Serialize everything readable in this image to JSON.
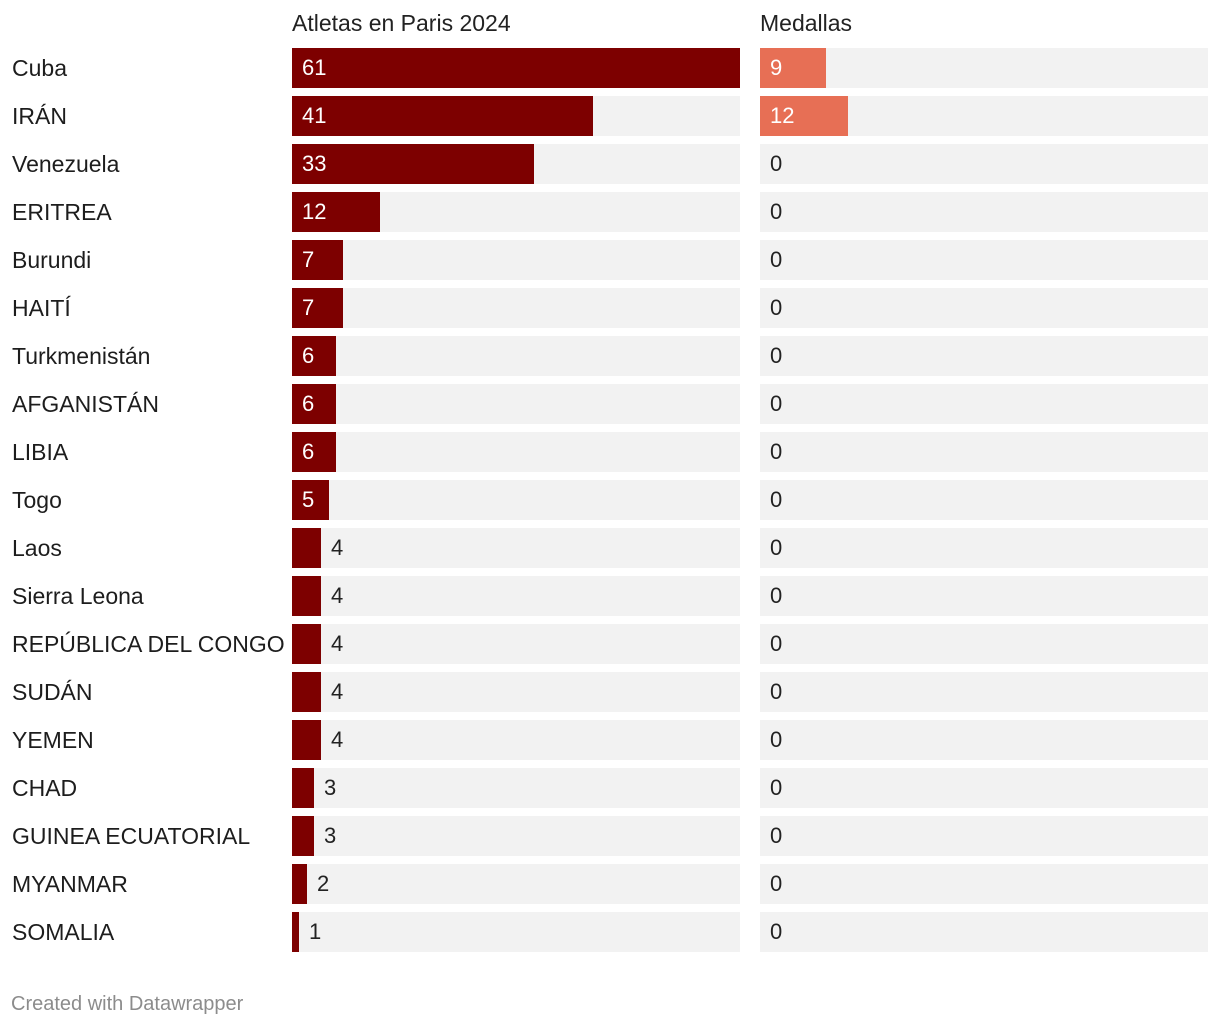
{
  "chart_data": {
    "type": "bar",
    "orientation": "horizontal",
    "series": [
      {
        "name": "Atletas en Paris 2024",
        "max": 61,
        "color": "#7d0000",
        "values": [
          61,
          41,
          33,
          12,
          7,
          7,
          6,
          6,
          6,
          5,
          4,
          4,
          4,
          4,
          4,
          3,
          3,
          2,
          1
        ]
      },
      {
        "name": "Medallas",
        "max": 61,
        "color": "#e76f55",
        "values": [
          9,
          12,
          0,
          0,
          0,
          0,
          0,
          0,
          0,
          0,
          0,
          0,
          0,
          0,
          0,
          0,
          0,
          0,
          0
        ]
      }
    ],
    "categories": [
      "Cuba",
      "IRÁN",
      "Venezuela",
      "ERITREA",
      "Burundi",
      "HAITÍ",
      "Turkmenistán",
      "AFGANISTÁN",
      "LIBIA",
      "Togo",
      "Laos",
      "Sierra Leona",
      "REPÚBLICA DEL CONGO",
      "SUDÁN",
      "YEMEN",
      "CHAD",
      "GUINEA ECUATORIAL",
      "MYANMAR",
      "SOMALIA"
    ],
    "track_color": "#f2f2f2"
  },
  "footer": {
    "credit": "Created with Datawrapper"
  }
}
